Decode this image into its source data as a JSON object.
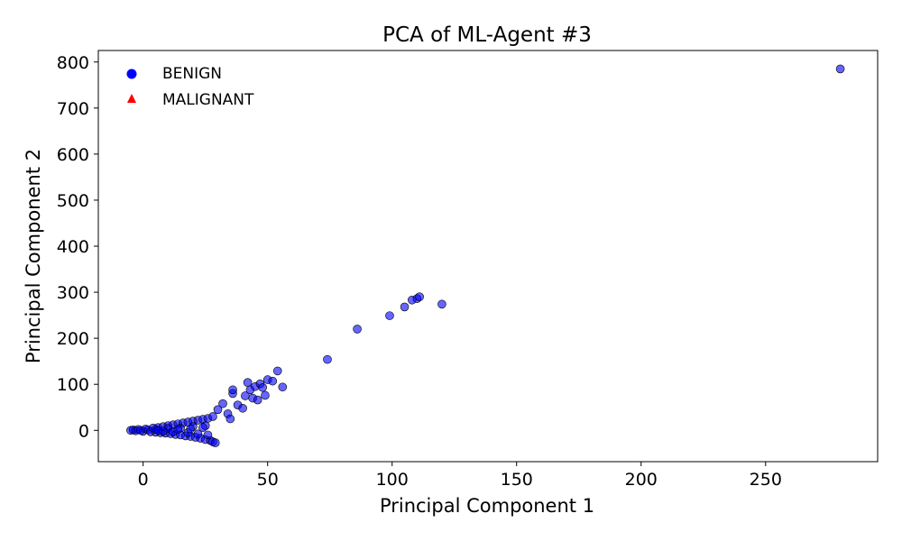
{
  "chart_data": {
    "type": "scatter",
    "title": "PCA of ML-Agent #3",
    "xlabel": "Principal Component 1",
    "ylabel": "Principal Component 2",
    "xlim": [
      -18,
      295
    ],
    "ylim": [
      -68,
      825
    ],
    "xticks": [
      0,
      50,
      100,
      150,
      200,
      250
    ],
    "yticks": [
      0,
      100,
      200,
      300,
      400,
      500,
      600,
      700,
      800
    ],
    "grid": false,
    "legend_position": "top-left",
    "series": [
      {
        "name": "BENIGN",
        "marker": "circle",
        "color": "#0000ff",
        "points": [
          [
            -5,
            0
          ],
          [
            -4,
            1
          ],
          [
            -3,
            -1
          ],
          [
            -2,
            2
          ],
          [
            -1,
            0
          ],
          [
            0,
            -2
          ],
          [
            1,
            3
          ],
          [
            2,
            1
          ],
          [
            3,
            -3
          ],
          [
            4,
            5
          ],
          [
            5,
            -4
          ],
          [
            6,
            6
          ],
          [
            7,
            -5
          ],
          [
            8,
            8
          ],
          [
            9,
            -6
          ],
          [
            10,
            10
          ],
          [
            11,
            -7
          ],
          [
            12,
            12
          ],
          [
            13,
            -9
          ],
          [
            14,
            14
          ],
          [
            15,
            -10
          ],
          [
            16,
            16
          ],
          [
            17,
            -12
          ],
          [
            18,
            18
          ],
          [
            19,
            -13
          ],
          [
            20,
            20
          ],
          [
            21,
            -15
          ],
          [
            22,
            22
          ],
          [
            23,
            -17
          ],
          [
            24,
            24
          ],
          [
            25,
            -20
          ],
          [
            26,
            26
          ],
          [
            27,
            -22
          ],
          [
            28,
            -25
          ],
          [
            29,
            -27
          ],
          [
            5,
            2
          ],
          [
            10,
            4
          ],
          [
            15,
            5
          ],
          [
            20,
            8
          ],
          [
            25,
            10
          ],
          [
            8,
            -2
          ],
          [
            12,
            -3
          ],
          [
            18,
            -5
          ],
          [
            22,
            -8
          ],
          [
            26,
            -10
          ],
          [
            6,
            0
          ],
          [
            14,
            2
          ],
          [
            19,
            3
          ],
          [
            24,
            6
          ],
          [
            28,
            30
          ],
          [
            30,
            45
          ],
          [
            32,
            58
          ],
          [
            34,
            36
          ],
          [
            35,
            25
          ],
          [
            36,
            80
          ],
          [
            36,
            88
          ],
          [
            38,
            55
          ],
          [
            40,
            48
          ],
          [
            41,
            75
          ],
          [
            42,
            104
          ],
          [
            43,
            88
          ],
          [
            44,
            70
          ],
          [
            45,
            95
          ],
          [
            46,
            66
          ],
          [
            47,
            101
          ],
          [
            48,
            93
          ],
          [
            49,
            76
          ],
          [
            50,
            110
          ],
          [
            52,
            107
          ],
          [
            54,
            129
          ],
          [
            56,
            94
          ],
          [
            74,
            154
          ],
          [
            86,
            220
          ],
          [
            99,
            249
          ],
          [
            105,
            268
          ],
          [
            108,
            283
          ],
          [
            110,
            286
          ],
          [
            111,
            290
          ],
          [
            120,
            274
          ],
          [
            280,
            785
          ]
        ]
      },
      {
        "name": "MALIGNANT",
        "marker": "triangle",
        "color": "#ff0000",
        "points": []
      }
    ]
  }
}
